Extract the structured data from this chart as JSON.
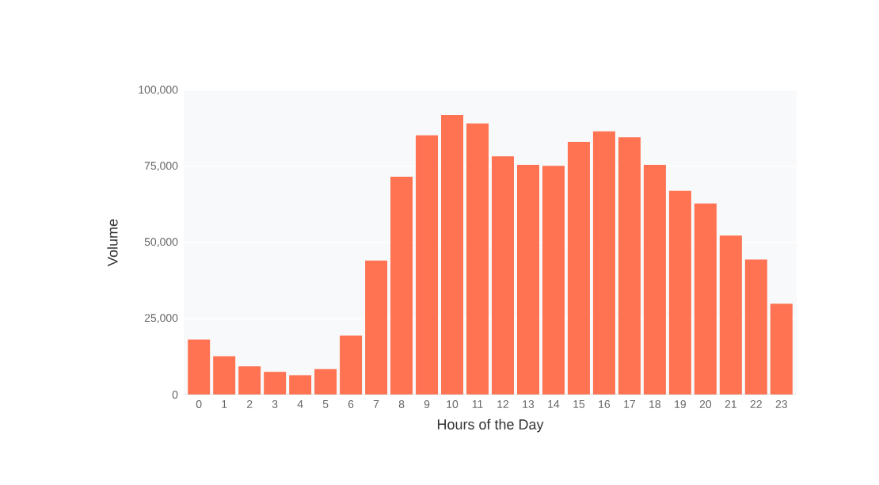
{
  "chart_data": {
    "type": "bar",
    "xlabel": "Hours of the Day",
    "ylabel": "Volume",
    "categories": [
      "0",
      "1",
      "2",
      "3",
      "4",
      "5",
      "6",
      "7",
      "8",
      "9",
      "10",
      "11",
      "12",
      "13",
      "14",
      "15",
      "16",
      "17",
      "18",
      "19",
      "20",
      "21",
      "22",
      "23"
    ],
    "values": [
      18100,
      12600,
      9300,
      7500,
      6400,
      8400,
      19400,
      44100,
      71600,
      85200,
      91900,
      89100,
      78300,
      75500,
      75200,
      83100,
      86500,
      84600,
      75500,
      67000,
      62800,
      52300,
      44400,
      29900
    ],
    "color": "#ff7352",
    "ylim": [
      0,
      100000
    ],
    "yticks": [
      {
        "value": 0,
        "label": "0"
      },
      {
        "value": 25000,
        "label": "25,000"
      },
      {
        "value": 50000,
        "label": "50,000"
      },
      {
        "value": 75000,
        "label": "75,000"
      },
      {
        "value": 100000,
        "label": "100,000"
      }
    ],
    "grid": "y"
  }
}
